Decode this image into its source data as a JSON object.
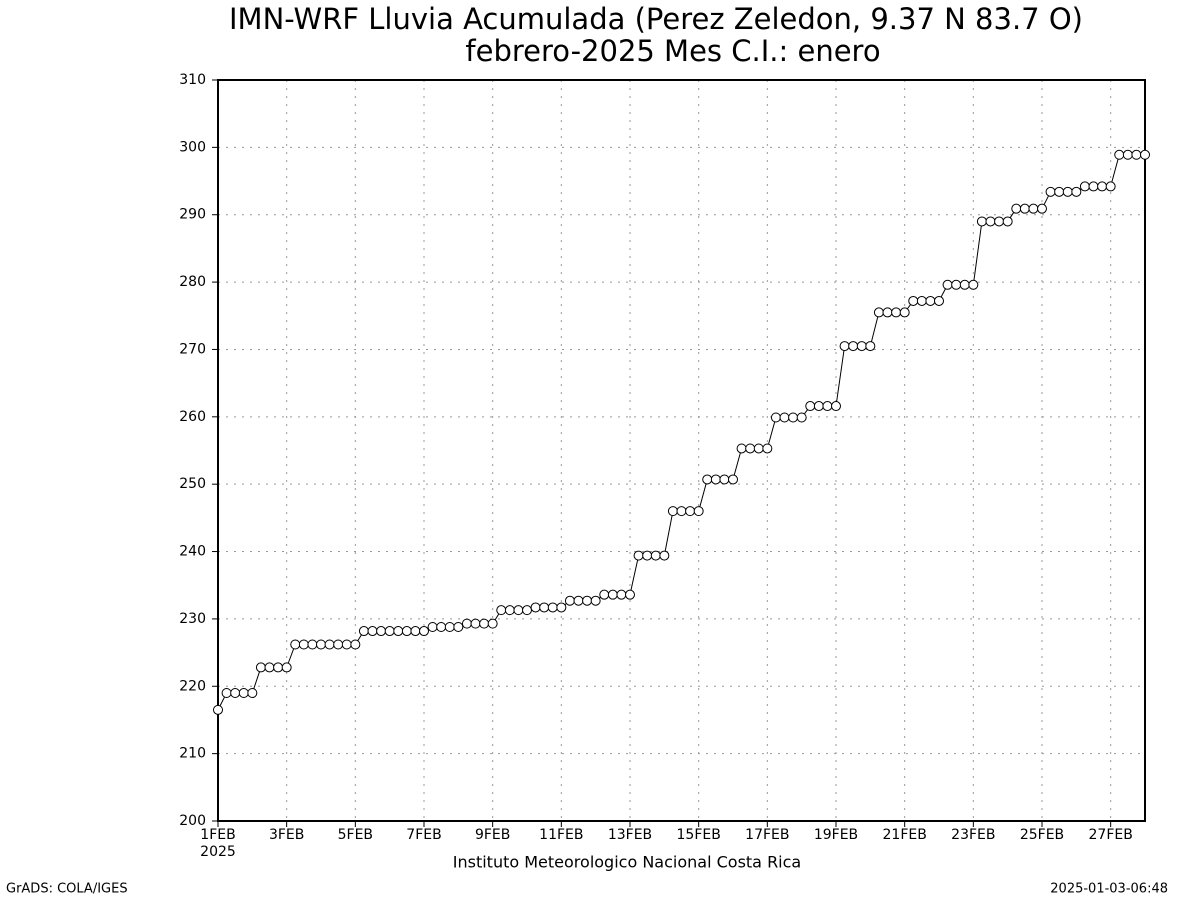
{
  "chart_data": {
    "type": "line",
    "title": "IMN-WRF  Lluvia Acumulada (Perez Zeledon, 9.37  N 83.7  O)",
    "subtitle": "febrero-2025 Mes C.I.: enero",
    "year_label": "2025",
    "source": "Instituto Meteorologico Nacional Costa Rica",
    "credit": "GrADS: COLA/IGES",
    "timestamp": "2025-01-03-06:48",
    "categories": [
      "1FEB",
      null,
      null,
      null,
      null,
      null,
      null,
      null,
      "3FEB",
      null,
      null,
      null,
      null,
      null,
      null,
      null,
      "5FEB",
      null,
      null,
      null,
      null,
      null,
      null,
      null,
      "7FEB",
      null,
      null,
      null,
      null,
      null,
      null,
      null,
      "9FEB",
      null,
      null,
      null,
      null,
      null,
      null,
      null,
      "11FEB",
      null,
      null,
      null,
      null,
      null,
      null,
      null,
      "13FEB",
      null,
      null,
      null,
      null,
      null,
      null,
      null,
      "15FEB",
      null,
      null,
      null,
      null,
      null,
      null,
      null,
      "17FEB",
      null,
      null,
      null,
      null,
      null,
      null,
      null,
      "19FEB",
      null,
      null,
      null,
      null,
      null,
      null,
      null,
      "21FEB",
      null,
      null,
      null,
      null,
      null,
      null,
      null,
      "23FEB",
      null,
      null,
      null,
      null,
      null,
      null,
      null,
      "25FEB",
      null,
      null,
      null,
      null,
      null,
      null,
      null,
      "27FEB",
      null,
      null,
      null,
      null
    ],
    "values": [
      216.5,
      219,
      219,
      219,
      219,
      222.8,
      222.8,
      222.8,
      222.8,
      226.2,
      226.2,
      226.2,
      226.2,
      226.2,
      226.2,
      226.2,
      226.2,
      228.2,
      228.2,
      228.2,
      228.2,
      228.2,
      228.2,
      228.2,
      228.2,
      228.8,
      228.8,
      228.8,
      228.8,
      229.3,
      229.3,
      229.3,
      229.3,
      231.3,
      231.3,
      231.3,
      231.3,
      231.7,
      231.7,
      231.7,
      231.7,
      232.7,
      232.7,
      232.7,
      232.7,
      233.6,
      233.6,
      233.6,
      233.6,
      239.4,
      239.4,
      239.4,
      239.4,
      246,
      246,
      246,
      246,
      250.7,
      250.7,
      250.7,
      250.7,
      255.3,
      255.3,
      255.3,
      255.3,
      259.9,
      259.9,
      259.9,
      259.9,
      261.6,
      261.6,
      261.6,
      261.6,
      270.5,
      270.5,
      270.5,
      270.5,
      275.5,
      275.5,
      275.5,
      275.5,
      277.2,
      277.2,
      277.2,
      277.2,
      279.6,
      279.6,
      279.6,
      279.6,
      289,
      289,
      289,
      289,
      290.9,
      290.9,
      290.9,
      290.9,
      293.4,
      293.4,
      293.4,
      293.4,
      294.2,
      294.2,
      294.2,
      294.2,
      298.9,
      298.9,
      298.9,
      298.9
    ],
    "color": "#000000",
    "ylim": [
      200,
      310
    ],
    "yticks": [
      200,
      210,
      220,
      230,
      240,
      250,
      260,
      270,
      280,
      290,
      300,
      310
    ],
    "grid": true
  }
}
